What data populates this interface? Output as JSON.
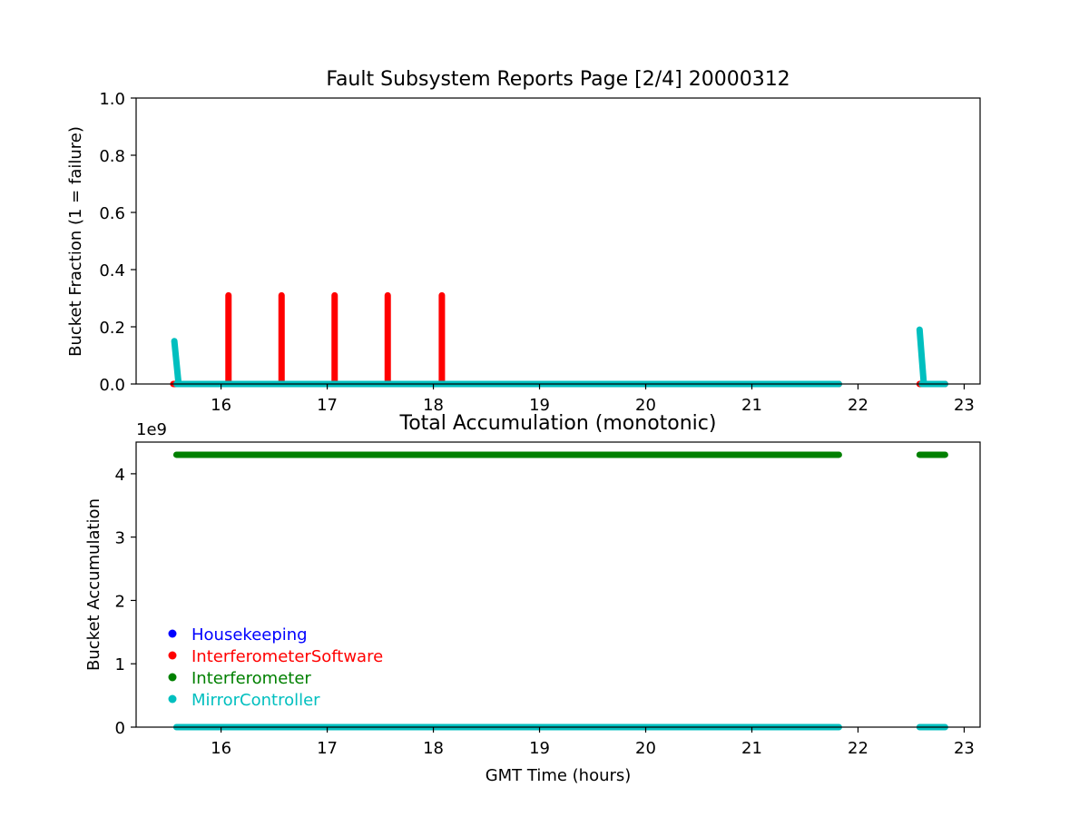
{
  "colors": {
    "Housekeeping": "#0000ff",
    "InterferometerSoftware": "#ff0000",
    "Interferometer": "#008000",
    "MirrorController": "#00bfbf"
  },
  "chart_data": [
    {
      "type": "scatter",
      "title": "Fault Subsystem Reports Page [2/4] 20000312",
      "xlabel": "",
      "ylabel": "Bucket Fraction (1 = failure)",
      "xlim": [
        15.2,
        23.15
      ],
      "ylim": [
        0,
        1.0
      ],
      "xticks": [
        16,
        17,
        18,
        19,
        20,
        21,
        22,
        23
      ],
      "xtick_labels": [
        "16",
        "17",
        "18",
        "19",
        "20",
        "21",
        "22",
        "23"
      ],
      "yticks": [
        0,
        0.2,
        0.4,
        0.6,
        0.8,
        1.0
      ],
      "ytick_labels": [
        "0.0",
        "0.2",
        "0.4",
        "0.6",
        "0.8",
        "1.0"
      ],
      "grid": false,
      "series": [
        {
          "name": "InterferometerSoftware",
          "segments": [
            {
              "x": [
                15.55,
                21.82
              ],
              "y": [
                0,
                0
              ]
            },
            {
              "x": [
                16.07,
                16.07
              ],
              "y": [
                0,
                0.31
              ]
            },
            {
              "x": [
                16.57,
                16.57
              ],
              "y": [
                0,
                0.31
              ]
            },
            {
              "x": [
                17.07,
                17.07
              ],
              "y": [
                0,
                0.31
              ]
            },
            {
              "x": [
                17.57,
                17.57
              ],
              "y": [
                0,
                0.31
              ]
            },
            {
              "x": [
                18.08,
                18.08
              ],
              "y": [
                0,
                0.31
              ]
            },
            {
              "x": [
                22.58,
                22.82
              ],
              "y": [
                0,
                0
              ]
            }
          ]
        },
        {
          "name": "MirrorController",
          "segments": [
            {
              "x": [
                15.58,
                21.82
              ],
              "y": [
                0,
                0
              ]
            },
            {
              "x": [
                15.56,
                15.6
              ],
              "y": [
                0.15,
                0.0
              ]
            },
            {
              "x": [
                22.58,
                22.62
              ],
              "y": [
                0.19,
                0.0
              ]
            },
            {
              "x": [
                22.6,
                22.82
              ],
              "y": [
                0,
                0
              ]
            }
          ]
        }
      ]
    },
    {
      "type": "scatter",
      "title": "Total Accumulation (monotonic)",
      "xlabel": "GMT Time (hours)",
      "ylabel": "Bucket Accumulation",
      "offset_label": "1e9",
      "xlim": [
        15.2,
        23.15
      ],
      "ylim": [
        0,
        4.5
      ],
      "xticks": [
        16,
        17,
        18,
        19,
        20,
        21,
        22,
        23
      ],
      "xtick_labels": [
        "16",
        "17",
        "18",
        "19",
        "20",
        "21",
        "22",
        "23"
      ],
      "yticks": [
        0,
        1,
        2,
        3,
        4
      ],
      "ytick_labels": [
        "0",
        "1",
        "2",
        "3",
        "4"
      ],
      "grid": false,
      "legend_position": "lower-left",
      "legend": [
        "Housekeeping",
        "InterferometerSoftware",
        "Interferometer",
        "MirrorController"
      ],
      "series": [
        {
          "name": "Interferometer",
          "segments": [
            {
              "x": [
                15.58,
                21.82
              ],
              "y": [
                4.3,
                4.3
              ]
            },
            {
              "x": [
                22.58,
                22.82
              ],
              "y": [
                4.3,
                4.3
              ]
            }
          ]
        },
        {
          "name": "MirrorController",
          "segments": [
            {
              "x": [
                15.58,
                21.82
              ],
              "y": [
                0,
                0
              ]
            },
            {
              "x": [
                22.58,
                22.82
              ],
              "y": [
                0,
                0
              ]
            }
          ]
        }
      ]
    }
  ]
}
